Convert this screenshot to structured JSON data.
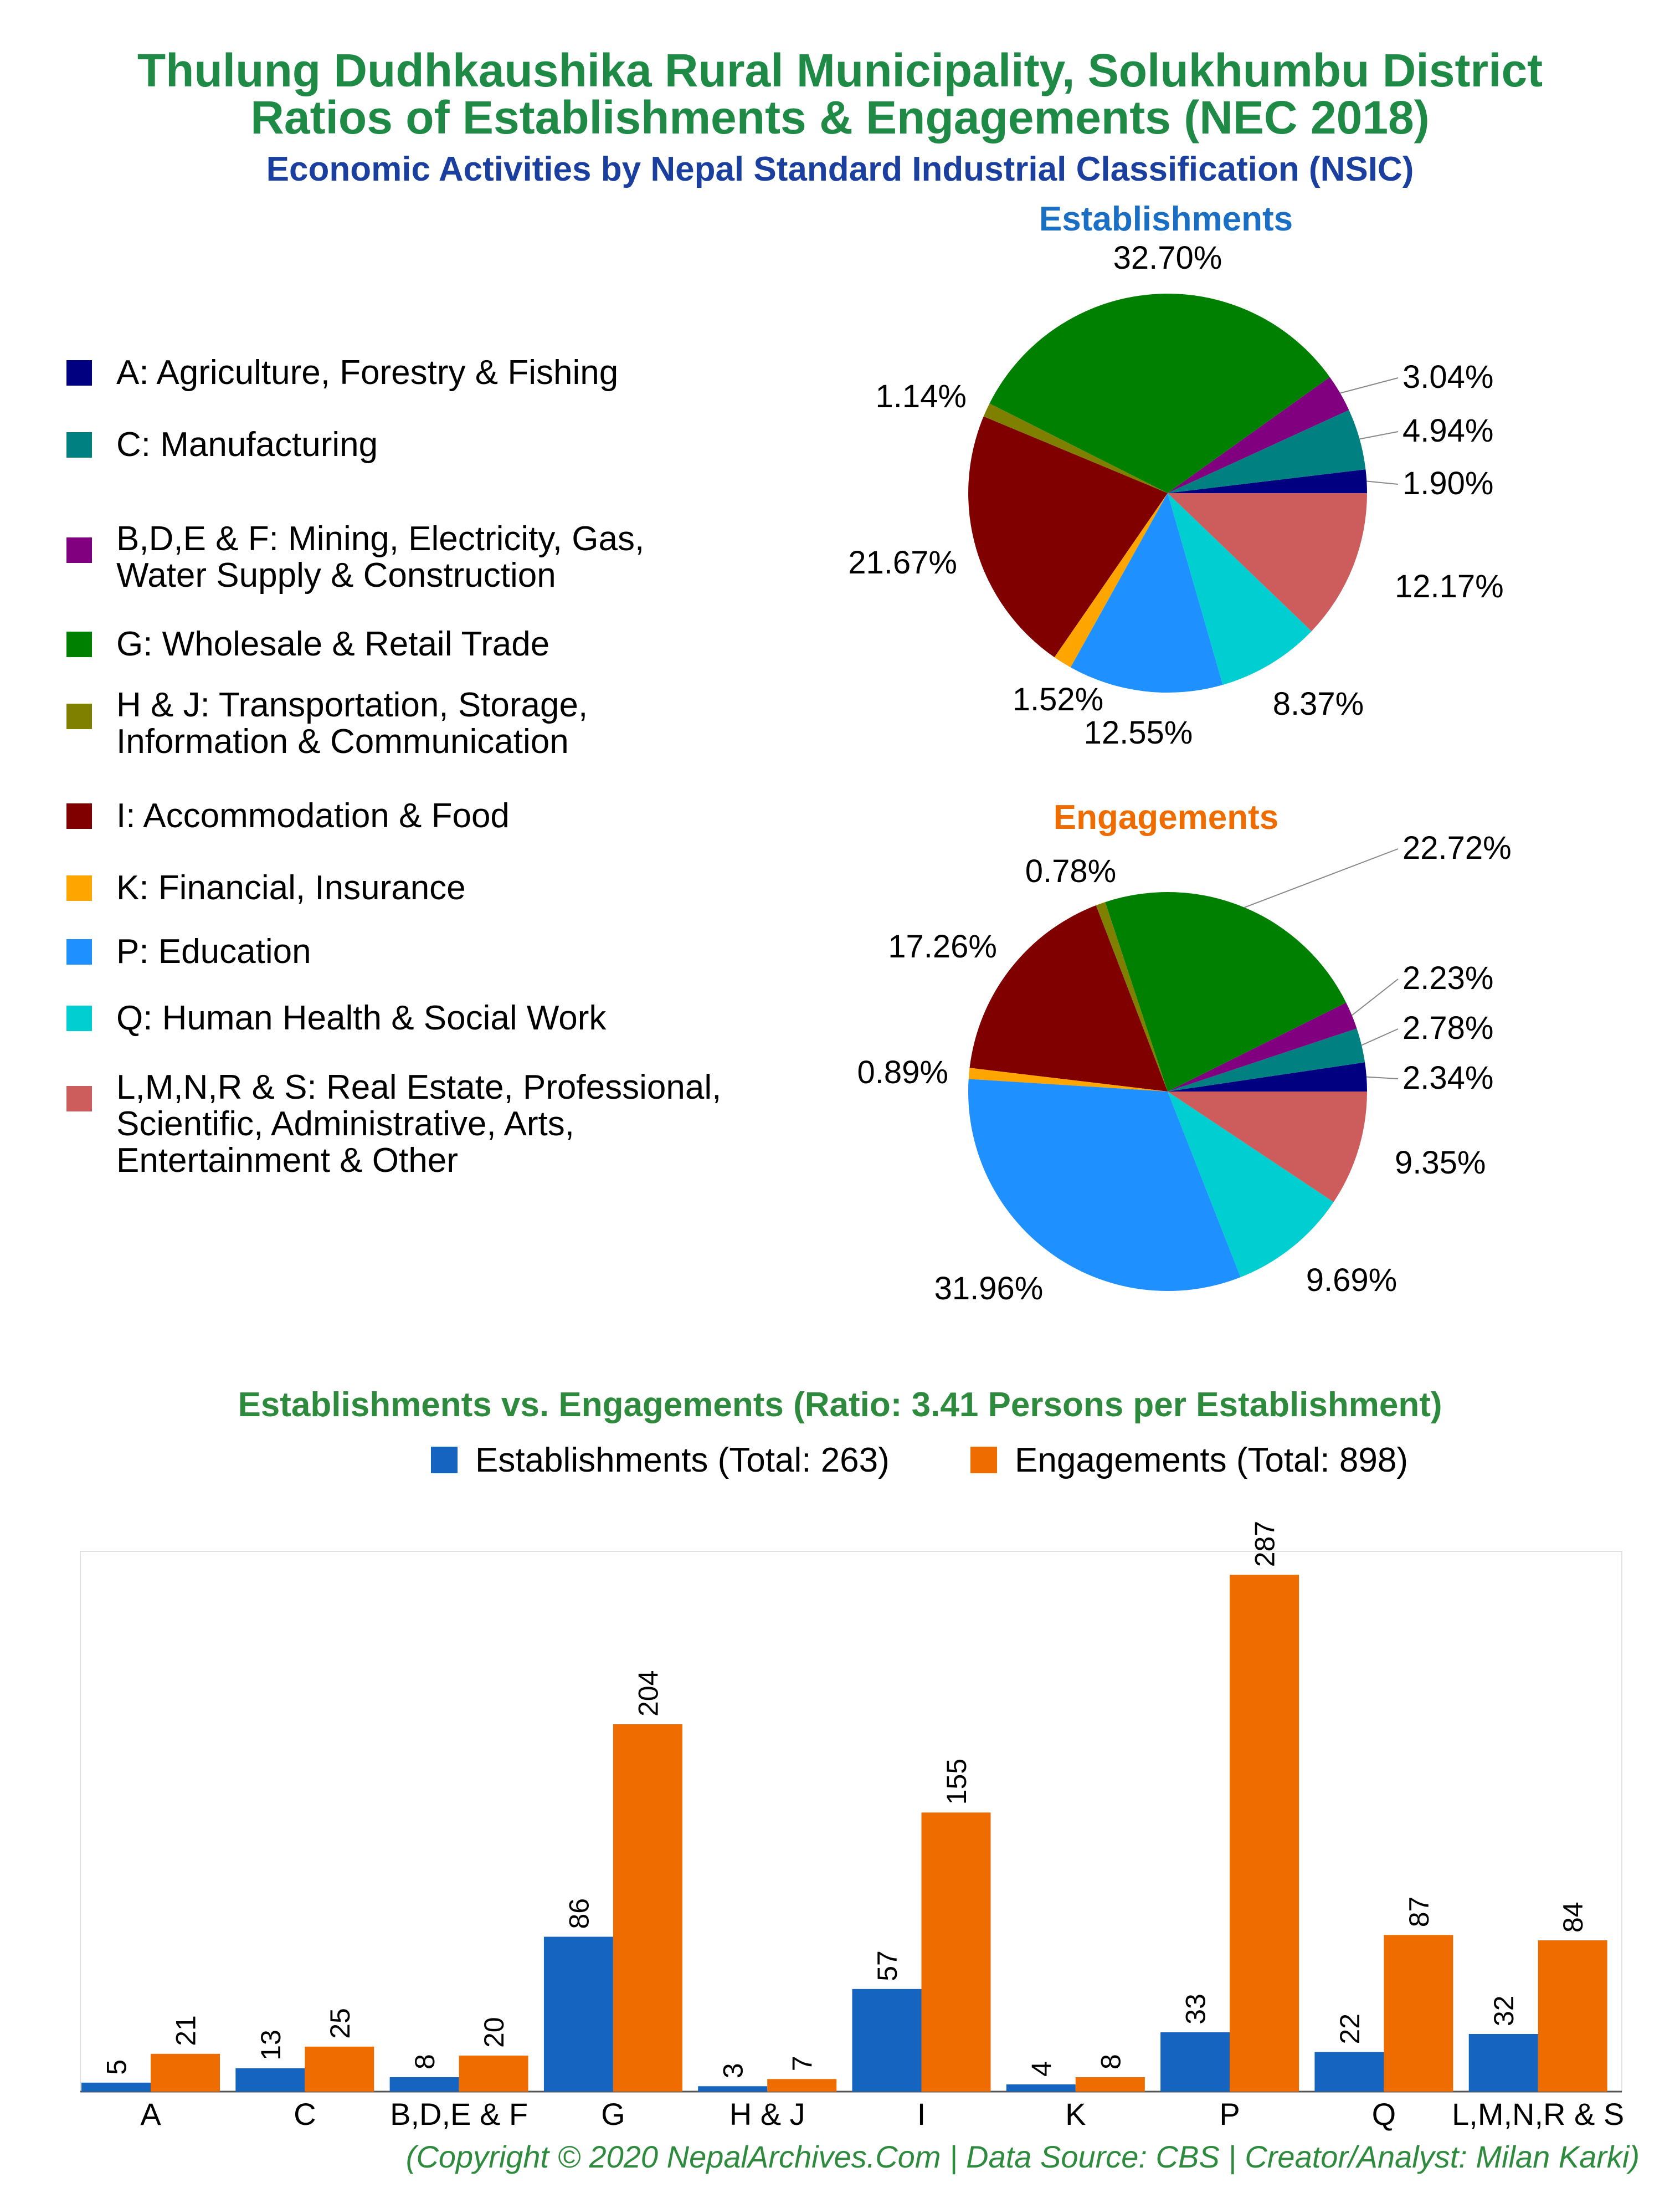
{
  "title_line1": "Thulung Dudhkaushika Rural Municipality, Solukhumbu District",
  "title_line2": "Ratios of Establishments & Engagements (NEC 2018)",
  "subtitle": "Economic Activities by Nepal Standard Industrial Classification (NSIC)",
  "legend": [
    {
      "label": "A: Agriculture, Forestry & Fishing",
      "color": "#000080"
    },
    {
      "label": "C: Manufacturing",
      "color": "#008080"
    },
    {
      "label": "B,D,E & F: Mining, Electricity, Gas,\nWater Supply & Construction",
      "color": "#800080"
    },
    {
      "label": "G: Wholesale & Retail Trade",
      "color": "#008000"
    },
    {
      "label": "H & J: Transportation, Storage,\nInformation & Communication",
      "color": "#808000"
    },
    {
      "label": "I: Accommodation & Food",
      "color": "#800000"
    },
    {
      "label": "K: Financial, Insurance",
      "color": "#ffa500"
    },
    {
      "label": "P: Education",
      "color": "#1e90ff"
    },
    {
      "label": "Q: Human Health & Social Work",
      "color": "#00ced1"
    },
    {
      "label": "L,M,N,R & S: Real Estate, Professional,\nScientific, Administrative, Arts,\nEntertainment & Other",
      "color": "#cd5c5c"
    }
  ],
  "pie_establishments": {
    "title": "Establishments",
    "title_color": "#1a6fc4",
    "values": [
      1.9,
      4.94,
      3.04,
      32.7,
      1.14,
      21.67,
      1.52,
      12.55,
      8.37,
      12.17
    ],
    "labels": [
      "1.90%",
      "4.94%",
      "3.04%",
      "32.70%",
      "1.14%",
      "21.67%",
      "1.52%",
      "12.55%",
      "8.37%",
      "12.17%"
    ]
  },
  "pie_engagements": {
    "title": "Engagements",
    "title_color": "#ef6c00",
    "values": [
      2.34,
      2.78,
      2.23,
      22.72,
      0.78,
      17.26,
      0.89,
      31.96,
      9.69,
      9.35
    ],
    "labels": [
      "2.34%",
      "2.78%",
      "2.23%",
      "22.72%",
      "0.78%",
      "17.26%",
      "0.89%",
      "31.96%",
      "9.69%",
      "9.35%"
    ]
  },
  "chart_data": {
    "type": "bar",
    "title": "Establishments vs. Engagements (Ratio: 3.41 Persons per Establishment)",
    "categories": [
      "A",
      "C",
      "B,D,E & F",
      "G",
      "H & J",
      "I",
      "K",
      "P",
      "Q",
      "L,M,N,R & S"
    ],
    "series": [
      {
        "name": "Establishments (Total: 263)",
        "color": "#1565c0",
        "values": [
          5,
          13,
          8,
          86,
          3,
          57,
          4,
          33,
          22,
          32
        ]
      },
      {
        "name": "Engagements (Total: 898)",
        "color": "#ef6c00",
        "values": [
          21,
          25,
          20,
          204,
          7,
          155,
          8,
          287,
          87,
          84
        ]
      }
    ],
    "ylim": [
      0,
      300
    ],
    "grid": false
  },
  "footer": "(Copyright © 2020 NepalArchives.Com | Data Source: CBS | Creator/Analyst: Milan Karki)"
}
